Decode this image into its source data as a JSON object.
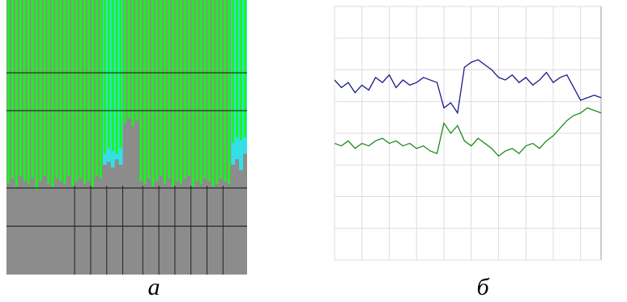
{
  "chart_data": [
    {
      "type": "bar",
      "panel_label": "а",
      "color": "#19f51e",
      "background": "#8c8c8c",
      "x": [
        0,
        1,
        2,
        3,
        4,
        5,
        6,
        7,
        8,
        9,
        10,
        11,
        12,
        13,
        14,
        15,
        16,
        17,
        18,
        19,
        20,
        21,
        22,
        23,
        24,
        25,
        26,
        27,
        28,
        29,
        30,
        31,
        32,
        33,
        34,
        35,
        36,
        37,
        38,
        39,
        40,
        41,
        42,
        43,
        44,
        45,
        46,
        47,
        48,
        49,
        50,
        51,
        52,
        53,
        54,
        55,
        56,
        57,
        58,
        59
      ],
      "values": [
        33,
        35,
        32,
        36,
        34,
        33,
        35,
        31,
        34,
        36,
        33,
        32,
        35,
        34,
        33,
        36,
        32,
        34,
        35,
        33,
        34,
        32,
        36,
        35,
        44,
        46,
        45,
        44,
        46,
        55,
        57,
        54,
        56,
        34,
        33,
        35,
        32,
        34,
        36,
        33,
        35,
        32,
        34,
        33,
        35,
        36,
        32,
        34,
        33,
        35,
        34,
        32,
        33,
        35,
        34,
        33,
        48,
        50,
        49,
        50
      ],
      "highlight": {
        "color": "#33e0e6",
        "values": [
          null,
          null,
          null,
          null,
          null,
          null,
          null,
          null,
          null,
          null,
          null,
          null,
          null,
          null,
          null,
          null,
          null,
          null,
          null,
          null,
          null,
          null,
          null,
          null,
          40,
          41,
          39,
          42,
          40,
          null,
          null,
          null,
          null,
          null,
          null,
          null,
          null,
          null,
          null,
          null,
          null,
          null,
          null,
          null,
          null,
          null,
          null,
          null,
          null,
          null,
          null,
          null,
          null,
          null,
          null,
          null,
          40,
          42,
          38,
          44
        ]
      },
      "xlim": [
        0,
        60
      ],
      "ylim": [
        0,
        100
      ],
      "yticks": [
        17.6,
        31.5,
        59.7,
        73.5
      ],
      "xticks": [
        17,
        21,
        25,
        29,
        34,
        38,
        42,
        46,
        50,
        54
      ]
    },
    {
      "type": "line",
      "panel_label": "б",
      "x": [
        0,
        1,
        2,
        3,
        4,
        5,
        6,
        7,
        8,
        9,
        10,
        11,
        12,
        13,
        14,
        15,
        16,
        17,
        18,
        19,
        20,
        21,
        22,
        23,
        24,
        25,
        26,
        27,
        28,
        29,
        30,
        31,
        32,
        33,
        34,
        35,
        36,
        37,
        38,
        39
      ],
      "series": [
        {
          "color": "#1a1a8c",
          "values": [
            71,
            68,
            70,
            66,
            69,
            67,
            72,
            70,
            73,
            68,
            71,
            69,
            70,
            72,
            71,
            70,
            60,
            62,
            58,
            76,
            78,
            79,
            77,
            75,
            72,
            71,
            73,
            70,
            72,
            69,
            71,
            74,
            70,
            72,
            73,
            68,
            63,
            64,
            65,
            64
          ]
        },
        {
          "color": "#1e8a1e",
          "values": [
            46,
            45,
            47,
            44,
            46,
            45,
            47,
            48,
            46,
            47,
            45,
            46,
            44,
            45,
            43,
            42,
            54,
            50,
            53,
            47,
            45,
            48,
            46,
            44,
            41,
            43,
            44,
            42,
            45,
            46,
            44,
            47,
            49,
            52,
            55,
            57,
            58,
            60,
            59,
            58
          ]
        }
      ],
      "xlim": [
        0,
        39
      ],
      "ylim": [
        0,
        100
      ],
      "yticks": [
        0,
        12.5,
        25,
        37.5,
        50,
        62.5,
        75,
        87.5,
        100
      ],
      "xticks": [
        0,
        4,
        8,
        12,
        16,
        20,
        24,
        28,
        32,
        36
      ]
    }
  ]
}
